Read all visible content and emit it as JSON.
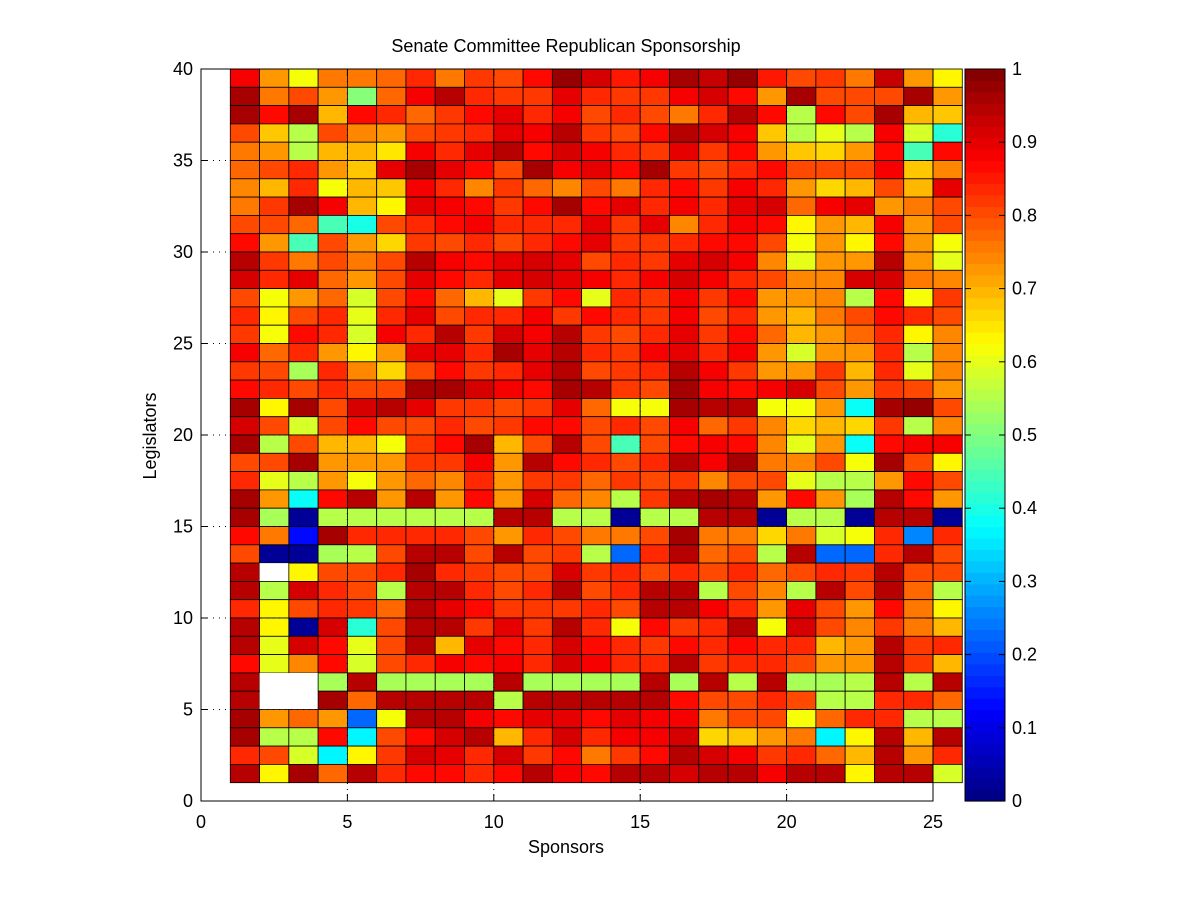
{
  "chart_data": {
    "type": "heatmap",
    "title": "Senate Committee Republican Sponsorship",
    "xlabel": "Sponsors",
    "ylabel": "Legislators",
    "xlim": [
      0,
      25
    ],
    "ylim": [
      0,
      40
    ],
    "xticks": [
      0,
      5,
      10,
      15,
      20,
      25
    ],
    "yticks": [
      0,
      5,
      10,
      15,
      20,
      25,
      30,
      35,
      40
    ],
    "grid": true,
    "colormap": "jet",
    "clim": [
      0,
      1
    ],
    "colorbar_ticks": [
      0,
      0.1,
      0.2,
      0.3,
      0.4,
      0.5,
      0.6,
      0.7,
      0.8,
      0.9,
      1
    ],
    "colorbar_placement": "right",
    "cell_x_start": 1,
    "cell_y_start": 1,
    "rows_top_to_bottom": [
      [
        0.88,
        0.72,
        0.62,
        0.76,
        0.75,
        0.78,
        0.84,
        0.76,
        0.82,
        0.8,
        0.86,
        0.97,
        0.92,
        0.85,
        0.88,
        0.96,
        0.93,
        0.97,
        0.85,
        0.8,
        0.82,
        0.76,
        0.93,
        0.72,
        0.64
      ],
      [
        0.96,
        0.75,
        0.8,
        0.72,
        0.5,
        0.78,
        0.88,
        0.95,
        0.84,
        0.82,
        0.82,
        0.9,
        0.84,
        0.82,
        0.82,
        0.88,
        0.92,
        0.86,
        0.72,
        0.96,
        0.8,
        0.8,
        0.8,
        0.96,
        0.72
      ],
      [
        0.96,
        0.86,
        0.96,
        0.7,
        0.86,
        0.84,
        0.78,
        0.82,
        0.86,
        0.9,
        0.84,
        0.88,
        0.8,
        0.84,
        0.8,
        0.76,
        0.84,
        0.95,
        0.86,
        0.55,
        0.86,
        0.8,
        0.96,
        0.7,
        0.68
      ],
      [
        0.8,
        0.68,
        0.55,
        0.8,
        0.74,
        0.72,
        0.8,
        0.82,
        0.84,
        0.9,
        0.88,
        0.94,
        0.82,
        0.8,
        0.86,
        0.94,
        0.92,
        0.88,
        0.68,
        0.55,
        0.6,
        0.55,
        0.88,
        0.58,
        0.42
      ],
      [
        0.76,
        0.72,
        0.55,
        0.7,
        0.7,
        0.65,
        0.88,
        0.84,
        0.9,
        0.95,
        0.86,
        0.92,
        0.88,
        0.84,
        0.82,
        0.9,
        0.82,
        0.86,
        0.72,
        0.68,
        0.66,
        0.72,
        0.86,
        0.44,
        0.86
      ],
      [
        0.78,
        0.8,
        0.84,
        0.72,
        0.68,
        0.9,
        0.96,
        0.9,
        0.86,
        0.8,
        0.96,
        0.88,
        0.9,
        0.86,
        0.96,
        0.82,
        0.8,
        0.84,
        0.86,
        0.8,
        0.8,
        0.8,
        0.88,
        0.68,
        0.74
      ],
      [
        0.74,
        0.7,
        0.84,
        0.62,
        0.7,
        0.68,
        0.88,
        0.84,
        0.74,
        0.82,
        0.78,
        0.74,
        0.8,
        0.76,
        0.84,
        0.86,
        0.82,
        0.88,
        0.84,
        0.72,
        0.66,
        0.7,
        0.8,
        0.7,
        0.9
      ],
      [
        0.76,
        0.82,
        0.96,
        0.88,
        0.7,
        0.64,
        0.9,
        0.88,
        0.86,
        0.82,
        0.86,
        0.96,
        0.86,
        0.9,
        0.84,
        0.88,
        0.84,
        0.9,
        0.92,
        0.78,
        0.88,
        0.9,
        0.72,
        0.76,
        0.8
      ],
      [
        0.8,
        0.8,
        0.78,
        0.45,
        0.4,
        0.8,
        0.84,
        0.86,
        0.88,
        0.84,
        0.84,
        0.84,
        0.9,
        0.82,
        0.9,
        0.74,
        0.84,
        0.88,
        0.86,
        0.64,
        0.72,
        0.7,
        0.88,
        0.72,
        0.8
      ],
      [
        0.86,
        0.72,
        0.44,
        0.8,
        0.72,
        0.66,
        0.82,
        0.8,
        0.84,
        0.8,
        0.84,
        0.86,
        0.9,
        0.82,
        0.82,
        0.84,
        0.86,
        0.86,
        0.8,
        0.62,
        0.72,
        0.64,
        0.86,
        0.72,
        0.62
      ],
      [
        0.94,
        0.82,
        0.76,
        0.8,
        0.76,
        0.8,
        0.94,
        0.88,
        0.86,
        0.9,
        0.92,
        0.9,
        0.8,
        0.84,
        0.82,
        0.9,
        0.92,
        0.88,
        0.74,
        0.6,
        0.72,
        0.72,
        0.94,
        0.72,
        0.6
      ],
      [
        0.92,
        0.84,
        0.9,
        0.78,
        0.72,
        0.8,
        0.9,
        0.86,
        0.84,
        0.9,
        0.92,
        0.9,
        0.88,
        0.84,
        0.88,
        0.92,
        0.88,
        0.84,
        0.8,
        0.74,
        0.74,
        0.92,
        0.92,
        0.76,
        0.74
      ],
      [
        0.8,
        0.62,
        0.72,
        0.78,
        0.58,
        0.8,
        0.86,
        0.78,
        0.7,
        0.6,
        0.82,
        0.86,
        0.6,
        0.84,
        0.82,
        0.88,
        0.82,
        0.86,
        0.72,
        0.72,
        0.74,
        0.56,
        0.86,
        0.62,
        0.82
      ],
      [
        0.84,
        0.64,
        0.8,
        0.84,
        0.6,
        0.84,
        0.9,
        0.8,
        0.84,
        0.84,
        0.88,
        0.82,
        0.86,
        0.84,
        0.82,
        0.88,
        0.8,
        0.84,
        0.72,
        0.7,
        0.76,
        0.8,
        0.86,
        0.84,
        0.8
      ],
      [
        0.82,
        0.62,
        0.86,
        0.84,
        0.58,
        0.88,
        0.84,
        0.94,
        0.82,
        0.92,
        0.88,
        0.94,
        0.82,
        0.8,
        0.84,
        0.9,
        0.82,
        0.86,
        0.78,
        0.7,
        0.72,
        0.78,
        0.84,
        0.64,
        0.74
      ],
      [
        0.88,
        0.78,
        0.84,
        0.72,
        0.64,
        0.72,
        0.9,
        0.9,
        0.84,
        0.96,
        0.9,
        0.94,
        0.84,
        0.82,
        0.88,
        0.9,
        0.84,
        0.88,
        0.72,
        0.58,
        0.72,
        0.72,
        0.84,
        0.56,
        0.74
      ],
      [
        0.82,
        0.8,
        0.54,
        0.84,
        0.74,
        0.66,
        0.8,
        0.86,
        0.82,
        0.84,
        0.9,
        0.94,
        0.8,
        0.82,
        0.84,
        0.94,
        0.88,
        0.82,
        0.72,
        0.72,
        0.82,
        0.7,
        0.84,
        0.6,
        0.74
      ],
      [
        0.86,
        0.84,
        0.8,
        0.84,
        0.8,
        0.8,
        0.96,
        0.96,
        0.92,
        0.88,
        0.86,
        0.96,
        0.94,
        0.82,
        0.8,
        0.96,
        0.88,
        0.86,
        0.88,
        0.92,
        0.8,
        0.72,
        0.82,
        0.8,
        0.72
      ],
      [
        0.96,
        0.64,
        0.96,
        0.8,
        0.92,
        0.94,
        0.9,
        0.82,
        0.82,
        0.8,
        0.82,
        0.9,
        0.78,
        0.62,
        0.62,
        0.96,
        0.94,
        0.94,
        0.62,
        0.62,
        0.72,
        0.38,
        0.96,
        0.98,
        0.8
      ],
      [
        0.92,
        0.8,
        0.58,
        0.8,
        0.86,
        0.8,
        0.8,
        0.84,
        0.8,
        0.82,
        0.86,
        0.86,
        0.8,
        0.84,
        0.8,
        0.88,
        0.78,
        0.82,
        0.74,
        0.66,
        0.7,
        0.66,
        0.82,
        0.56,
        0.74
      ],
      [
        0.96,
        0.56,
        0.8,
        0.7,
        0.7,
        0.62,
        0.82,
        0.86,
        0.96,
        0.7,
        0.8,
        0.94,
        0.8,
        0.44,
        0.8,
        0.86,
        0.88,
        0.86,
        0.74,
        0.6,
        0.72,
        0.38,
        0.86,
        0.88,
        0.88
      ],
      [
        0.8,
        0.8,
        0.96,
        0.72,
        0.72,
        0.72,
        0.82,
        0.82,
        0.88,
        0.72,
        0.94,
        0.86,
        0.84,
        0.8,
        0.84,
        0.94,
        0.88,
        0.96,
        0.76,
        0.74,
        0.8,
        0.62,
        0.96,
        0.8,
        0.64
      ],
      [
        0.84,
        0.6,
        0.56,
        0.72,
        0.62,
        0.72,
        0.78,
        0.74,
        0.84,
        0.72,
        0.82,
        0.82,
        0.78,
        0.82,
        0.8,
        0.82,
        0.74,
        0.8,
        0.8,
        0.6,
        0.56,
        0.56,
        0.72,
        0.86,
        0.8
      ],
      [
        0.96,
        0.72,
        0.38,
        0.86,
        0.94,
        0.72,
        0.95,
        0.72,
        0.86,
        0.72,
        0.92,
        0.78,
        0.74,
        0.56,
        0.82,
        0.94,
        0.96,
        0.94,
        0.72,
        0.86,
        0.72,
        0.54,
        0.94,
        0.86,
        0.72
      ],
      [
        0.96,
        0.54,
        0.02,
        0.56,
        0.56,
        0.56,
        0.56,
        0.56,
        0.56,
        0.94,
        0.94,
        0.56,
        0.56,
        0.02,
        0.56,
        0.56,
        0.94,
        0.94,
        0.02,
        0.56,
        0.56,
        0.02,
        0.94,
        0.94,
        0.02
      ],
      [
        0.86,
        0.76,
        0.14,
        0.96,
        0.84,
        0.84,
        0.84,
        0.84,
        0.8,
        0.72,
        0.84,
        0.8,
        0.76,
        0.76,
        0.8,
        0.96,
        0.76,
        0.76,
        0.66,
        0.76,
        0.58,
        0.62,
        0.84,
        0.26,
        0.84
      ],
      [
        0.8,
        0.02,
        0.02,
        0.54,
        0.56,
        0.8,
        0.94,
        0.94,
        0.8,
        0.94,
        0.8,
        0.82,
        0.56,
        0.22,
        0.84,
        0.94,
        0.78,
        0.8,
        0.56,
        0.94,
        0.22,
        0.22,
        0.84,
        0.94,
        0.8
      ],
      [
        0.94,
        null,
        0.64,
        0.8,
        0.8,
        0.84,
        0.96,
        0.84,
        0.82,
        0.8,
        0.8,
        0.92,
        0.82,
        0.84,
        0.8,
        0.84,
        0.8,
        0.84,
        0.78,
        0.8,
        0.84,
        0.82,
        0.94,
        0.8,
        0.8
      ],
      [
        0.94,
        0.56,
        0.92,
        0.84,
        0.8,
        0.56,
        0.94,
        0.94,
        0.84,
        0.8,
        0.84,
        0.94,
        0.8,
        0.84,
        0.94,
        0.94,
        0.56,
        0.8,
        0.74,
        0.56,
        0.94,
        0.8,
        0.94,
        0.78,
        0.56
      ],
      [
        0.84,
        0.64,
        0.8,
        0.84,
        0.82,
        0.78,
        0.94,
        0.9,
        0.86,
        0.82,
        0.82,
        0.82,
        0.84,
        0.8,
        0.94,
        0.94,
        0.88,
        0.84,
        0.72,
        0.9,
        0.8,
        0.72,
        0.86,
        0.76,
        0.64
      ],
      [
        0.94,
        0.64,
        0.02,
        0.92,
        0.42,
        0.8,
        0.94,
        0.94,
        0.82,
        0.9,
        0.82,
        0.94,
        0.84,
        0.62,
        0.86,
        0.82,
        0.84,
        0.94,
        0.62,
        0.92,
        0.8,
        0.74,
        0.82,
        0.76,
        0.7
      ],
      [
        0.94,
        0.6,
        0.92,
        0.86,
        0.6,
        0.8,
        0.94,
        0.7,
        0.9,
        0.86,
        0.84,
        0.92,
        0.86,
        0.84,
        0.82,
        0.86,
        0.84,
        0.86,
        0.84,
        0.84,
        0.7,
        0.72,
        0.94,
        0.82,
        0.84
      ],
      [
        0.86,
        0.6,
        0.74,
        0.86,
        0.58,
        0.8,
        0.84,
        0.88,
        0.86,
        0.88,
        0.84,
        0.92,
        0.88,
        0.84,
        0.84,
        0.94,
        0.82,
        0.84,
        0.84,
        0.8,
        0.72,
        0.72,
        0.94,
        0.82,
        0.7
      ],
      [
        0.94,
        null,
        null,
        0.54,
        0.94,
        0.54,
        0.54,
        0.54,
        0.54,
        0.94,
        0.54,
        0.54,
        0.54,
        0.54,
        0.94,
        0.54,
        0.94,
        0.56,
        0.94,
        0.54,
        0.54,
        0.56,
        0.94,
        0.56,
        0.94
      ],
      [
        0.94,
        null,
        null,
        0.96,
        0.78,
        0.94,
        0.94,
        0.94,
        0.94,
        0.56,
        0.94,
        0.94,
        0.94,
        0.94,
        0.94,
        0.86,
        0.8,
        0.8,
        0.84,
        0.8,
        0.56,
        0.56,
        0.84,
        0.84,
        0.78
      ],
      [
        0.96,
        0.72,
        0.78,
        0.72,
        0.22,
        0.62,
        0.94,
        0.94,
        0.88,
        0.86,
        0.9,
        0.9,
        0.86,
        0.9,
        0.88,
        0.88,
        0.76,
        0.8,
        0.8,
        0.62,
        0.78,
        0.84,
        0.84,
        0.56,
        0.56
      ],
      [
        0.96,
        0.56,
        0.56,
        0.86,
        0.36,
        0.8,
        0.86,
        0.92,
        0.94,
        0.7,
        0.84,
        0.92,
        0.84,
        0.88,
        0.88,
        0.92,
        0.66,
        0.68,
        0.72,
        0.76,
        0.36,
        0.64,
        0.94,
        0.7,
        0.94
      ],
      [
        0.84,
        0.8,
        0.58,
        0.36,
        0.64,
        0.82,
        0.92,
        0.9,
        0.84,
        0.92,
        0.82,
        0.86,
        0.76,
        0.82,
        0.86,
        0.94,
        0.92,
        0.88,
        0.82,
        0.84,
        0.78,
        0.7,
        0.94,
        0.72,
        0.84
      ],
      [
        0.94,
        0.64,
        0.96,
        0.78,
        0.94,
        0.84,
        0.86,
        0.86,
        0.84,
        0.86,
        0.94,
        0.88,
        0.86,
        0.94,
        0.94,
        0.92,
        0.94,
        0.94,
        0.88,
        0.94,
        0.94,
        0.64,
        0.94,
        0.94,
        0.58
      ]
    ]
  }
}
